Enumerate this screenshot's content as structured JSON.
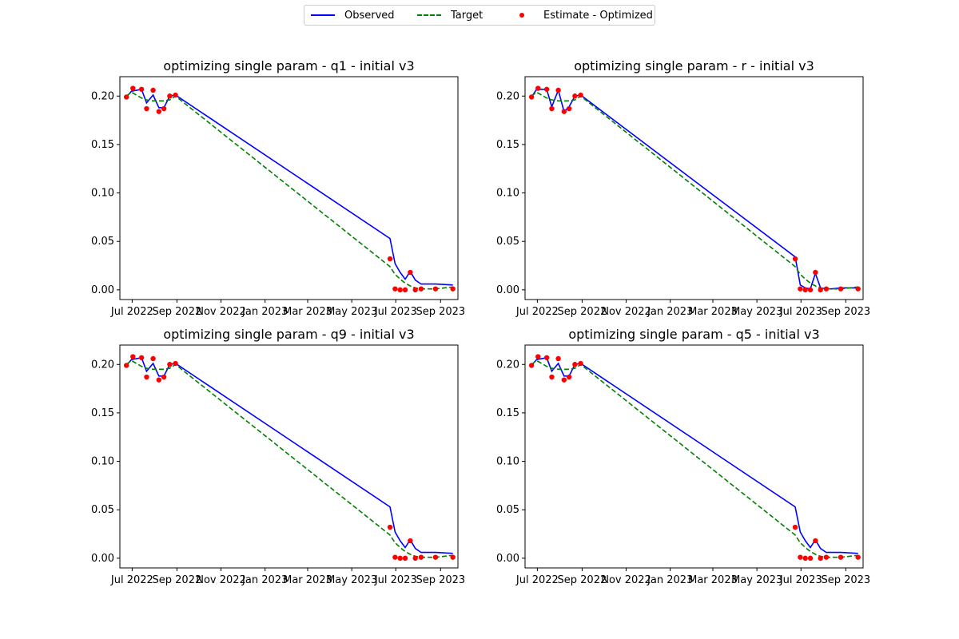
{
  "legend": {
    "entries": [
      {
        "label": "Observed",
        "color": "#0000ff",
        "style": "solid"
      },
      {
        "label": "Target",
        "color": "#008000",
        "style": "dashed"
      },
      {
        "label": "Estimate - Optimized",
        "color": "#ff0000",
        "style": "marker"
      }
    ],
    "placement": "top-center"
  },
  "chart_data": [
    {
      "type": "line",
      "title": "optimizing single param - q1 - initial v3",
      "xlabel": "",
      "ylabel": "",
      "ylim": [
        -0.01,
        0.22
      ],
      "xlim": [
        "2022-06-14",
        "2023-09-25"
      ],
      "y_ticks": [
        0.0,
        0.05,
        0.1,
        0.15,
        0.2
      ],
      "y_tick_labels": [
        "0.00",
        "0.05",
        "0.10",
        "0.15",
        "0.20"
      ],
      "x_ticks": [
        "2022-07-01",
        "2022-09-01",
        "2022-11-01",
        "2023-01-01",
        "2023-03-01",
        "2023-05-01",
        "2023-07-01",
        "2023-09-01"
      ],
      "x_tick_labels": [
        "Jul 2022",
        "Sep 2022",
        "Nov 2022",
        "Jan 2023",
        "Mar 2023",
        "May 2023",
        "Jul 2023",
        "Sep 2023"
      ],
      "grid": false,
      "series": [
        {
          "name": "Observed",
          "kind": "line",
          "color": "#0000ff",
          "x": [
            "2022-06-23",
            "2022-06-30",
            "2022-07-14",
            "2022-07-21",
            "2022-07-30",
            "2022-08-07",
            "2022-08-14",
            "2022-08-22",
            "2022-08-30",
            "2023-06-23",
            "2023-06-30",
            "2023-07-07",
            "2023-07-14",
            "2023-07-21",
            "2023-07-28",
            "2023-08-05",
            "2023-08-12",
            "2023-08-25",
            "2023-09-18"
          ],
          "y": [
            0.199,
            0.205,
            0.207,
            0.193,
            0.201,
            0.188,
            0.188,
            0.2,
            0.201,
            0.053,
            0.027,
            0.018,
            0.011,
            0.019,
            0.01,
            0.006,
            0.006,
            0.006,
            0.005
          ]
        },
        {
          "name": "Target",
          "kind": "dashed",
          "color": "#008000",
          "x": [
            "2022-06-23",
            "2022-06-30",
            "2022-07-14",
            "2022-07-21",
            "2022-07-30",
            "2022-08-07",
            "2022-08-14",
            "2022-08-22",
            "2022-08-30",
            "2023-06-23",
            "2023-06-30",
            "2023-07-07",
            "2023-07-14",
            "2023-07-21",
            "2023-07-28",
            "2023-08-05",
            "2023-08-12",
            "2023-08-25",
            "2023-09-18"
          ],
          "y": [
            0.2,
            0.204,
            0.198,
            0.196,
            0.195,
            0.195,
            0.195,
            0.196,
            0.2,
            0.024,
            0.016,
            0.011,
            0.007,
            0.004,
            0.002,
            0.001,
            0.001,
            0.001,
            0.003
          ]
        },
        {
          "name": "Estimate - Optimized",
          "kind": "scatter",
          "color": "#ff0000",
          "x": [
            "2022-06-23",
            "2022-07-02",
            "2022-07-14",
            "2022-07-21",
            "2022-07-30",
            "2022-08-07",
            "2022-08-14",
            "2022-08-22",
            "2022-08-30",
            "2023-06-23",
            "2023-06-30",
            "2023-07-07",
            "2023-07-14",
            "2023-07-21",
            "2023-07-28",
            "2023-08-05",
            "2023-08-25",
            "2023-09-18"
          ],
          "y": [
            0.199,
            0.208,
            0.207,
            0.187,
            0.206,
            0.184,
            0.187,
            0.2,
            0.201,
            0.032,
            0.001,
            0.0,
            0.0,
            0.018,
            0.0,
            0.001,
            0.001,
            0.001
          ]
        }
      ]
    },
    {
      "type": "line",
      "title": "optimizing single param - r - initial v3",
      "xlabel": "",
      "ylabel": "",
      "ylim": [
        -0.01,
        0.22
      ],
      "xlim": [
        "2022-06-14",
        "2023-09-25"
      ],
      "y_ticks": [
        0.0,
        0.05,
        0.1,
        0.15,
        0.2
      ],
      "y_tick_labels": [
        "0.00",
        "0.05",
        "0.10",
        "0.15",
        "0.20"
      ],
      "x_ticks": [
        "2022-07-01",
        "2022-09-01",
        "2022-11-01",
        "2023-01-01",
        "2023-03-01",
        "2023-05-01",
        "2023-07-01",
        "2023-09-01"
      ],
      "x_tick_labels": [
        "Jul 2022",
        "Sep 2022",
        "Nov 2022",
        "Jan 2023",
        "Mar 2023",
        "May 2023",
        "Jul 2023",
        "Sep 2023"
      ],
      "grid": false,
      "series": [
        {
          "name": "Observed",
          "kind": "line",
          "color": "#0000ff",
          "x": [
            "2022-06-23",
            "2022-06-30",
            "2022-07-14",
            "2022-07-21",
            "2022-07-30",
            "2022-08-07",
            "2022-08-14",
            "2022-08-22",
            "2022-08-30",
            "2023-06-23",
            "2023-06-30",
            "2023-07-07",
            "2023-07-14",
            "2023-07-21",
            "2023-07-28",
            "2023-08-05",
            "2023-08-12",
            "2023-08-25",
            "2023-09-18"
          ],
          "y": [
            0.199,
            0.207,
            0.207,
            0.189,
            0.206,
            0.184,
            0.189,
            0.2,
            0.201,
            0.034,
            0.005,
            0.002,
            0.001,
            0.017,
            0.002,
            0.001,
            0.001,
            0.002,
            0.002
          ]
        },
        {
          "name": "Target",
          "kind": "dashed",
          "color": "#008000",
          "x": [
            "2022-06-23",
            "2022-06-30",
            "2022-07-14",
            "2022-07-21",
            "2022-07-30",
            "2022-08-07",
            "2022-08-14",
            "2022-08-22",
            "2022-08-30",
            "2023-06-23",
            "2023-06-30",
            "2023-07-07",
            "2023-07-14",
            "2023-07-21",
            "2023-07-28",
            "2023-08-05",
            "2023-08-12",
            "2023-08-25",
            "2023-09-18"
          ],
          "y": [
            0.2,
            0.204,
            0.198,
            0.196,
            0.195,
            0.195,
            0.195,
            0.196,
            0.2,
            0.024,
            0.016,
            0.011,
            0.007,
            0.004,
            0.002,
            0.001,
            0.001,
            0.001,
            0.003
          ]
        },
        {
          "name": "Estimate - Optimized",
          "kind": "scatter",
          "color": "#ff0000",
          "x": [
            "2022-06-23",
            "2022-07-02",
            "2022-07-14",
            "2022-07-21",
            "2022-07-30",
            "2022-08-07",
            "2022-08-14",
            "2022-08-22",
            "2022-08-30",
            "2023-06-23",
            "2023-06-30",
            "2023-07-07",
            "2023-07-14",
            "2023-07-21",
            "2023-07-28",
            "2023-08-05",
            "2023-08-25",
            "2023-09-18"
          ],
          "y": [
            0.199,
            0.208,
            0.207,
            0.187,
            0.206,
            0.184,
            0.187,
            0.2,
            0.201,
            0.032,
            0.001,
            0.0,
            0.0,
            0.018,
            0.0,
            0.001,
            0.001,
            0.001
          ]
        }
      ]
    },
    {
      "type": "line",
      "title": "optimizing single param - q9 - initial v3",
      "xlabel": "",
      "ylabel": "",
      "ylim": [
        -0.01,
        0.22
      ],
      "xlim": [
        "2022-06-14",
        "2023-09-25"
      ],
      "y_ticks": [
        0.0,
        0.05,
        0.1,
        0.15,
        0.2
      ],
      "y_tick_labels": [
        "0.00",
        "0.05",
        "0.10",
        "0.15",
        "0.20"
      ],
      "x_ticks": [
        "2022-07-01",
        "2022-09-01",
        "2022-11-01",
        "2023-01-01",
        "2023-03-01",
        "2023-05-01",
        "2023-07-01",
        "2023-09-01"
      ],
      "x_tick_labels": [
        "Jul 2022",
        "Sep 2022",
        "Nov 2022",
        "Jan 2023",
        "Mar 2023",
        "May 2023",
        "Jul 2023",
        "Sep 2023"
      ],
      "grid": false,
      "series": [
        {
          "name": "Observed",
          "kind": "line",
          "color": "#0000ff",
          "x": [
            "2022-06-23",
            "2022-06-30",
            "2022-07-14",
            "2022-07-21",
            "2022-07-30",
            "2022-08-07",
            "2022-08-14",
            "2022-08-22",
            "2022-08-30",
            "2023-06-23",
            "2023-06-30",
            "2023-07-07",
            "2023-07-14",
            "2023-07-21",
            "2023-07-28",
            "2023-08-05",
            "2023-08-12",
            "2023-08-25",
            "2023-09-18"
          ],
          "y": [
            0.199,
            0.205,
            0.207,
            0.193,
            0.201,
            0.188,
            0.188,
            0.2,
            0.201,
            0.053,
            0.027,
            0.018,
            0.011,
            0.019,
            0.01,
            0.006,
            0.006,
            0.006,
            0.005
          ]
        },
        {
          "name": "Target",
          "kind": "dashed",
          "color": "#008000",
          "x": [
            "2022-06-23",
            "2022-06-30",
            "2022-07-14",
            "2022-07-21",
            "2022-07-30",
            "2022-08-07",
            "2022-08-14",
            "2022-08-22",
            "2022-08-30",
            "2023-06-23",
            "2023-06-30",
            "2023-07-07",
            "2023-07-14",
            "2023-07-21",
            "2023-07-28",
            "2023-08-05",
            "2023-08-12",
            "2023-08-25",
            "2023-09-18"
          ],
          "y": [
            0.2,
            0.204,
            0.198,
            0.196,
            0.195,
            0.195,
            0.195,
            0.196,
            0.2,
            0.024,
            0.016,
            0.011,
            0.007,
            0.004,
            0.002,
            0.001,
            0.001,
            0.001,
            0.003
          ]
        },
        {
          "name": "Estimate - Optimized",
          "kind": "scatter",
          "color": "#ff0000",
          "x": [
            "2022-06-23",
            "2022-07-02",
            "2022-07-14",
            "2022-07-21",
            "2022-07-30",
            "2022-08-07",
            "2022-08-14",
            "2022-08-22",
            "2022-08-30",
            "2023-06-23",
            "2023-06-30",
            "2023-07-07",
            "2023-07-14",
            "2023-07-21",
            "2023-07-28",
            "2023-08-05",
            "2023-08-25",
            "2023-09-18"
          ],
          "y": [
            0.199,
            0.208,
            0.207,
            0.187,
            0.206,
            0.184,
            0.187,
            0.2,
            0.201,
            0.032,
            0.001,
            0.0,
            0.0,
            0.018,
            0.0,
            0.001,
            0.001,
            0.001
          ]
        }
      ]
    },
    {
      "type": "line",
      "title": "optimizing single param - q5 - initial v3",
      "xlabel": "",
      "ylabel": "",
      "ylim": [
        -0.01,
        0.22
      ],
      "xlim": [
        "2022-06-14",
        "2023-09-25"
      ],
      "y_ticks": [
        0.0,
        0.05,
        0.1,
        0.15,
        0.2
      ],
      "y_tick_labels": [
        "0.00",
        "0.05",
        "0.10",
        "0.15",
        "0.20"
      ],
      "x_ticks": [
        "2022-07-01",
        "2022-09-01",
        "2022-11-01",
        "2023-01-01",
        "2023-03-01",
        "2023-05-01",
        "2023-07-01",
        "2023-09-01"
      ],
      "x_tick_labels": [
        "Jul 2022",
        "Sep 2022",
        "Nov 2022",
        "Jan 2023",
        "Mar 2023",
        "May 2023",
        "Jul 2023",
        "Sep 2023"
      ],
      "grid": false,
      "series": [
        {
          "name": "Observed",
          "kind": "line",
          "color": "#0000ff",
          "x": [
            "2022-06-23",
            "2022-06-30",
            "2022-07-14",
            "2022-07-21",
            "2022-07-30",
            "2022-08-07",
            "2022-08-14",
            "2022-08-22",
            "2022-08-30",
            "2023-06-23",
            "2023-06-30",
            "2023-07-07",
            "2023-07-14",
            "2023-07-21",
            "2023-07-28",
            "2023-08-05",
            "2023-08-12",
            "2023-08-25",
            "2023-09-18"
          ],
          "y": [
            0.199,
            0.205,
            0.207,
            0.193,
            0.201,
            0.188,
            0.188,
            0.2,
            0.201,
            0.053,
            0.027,
            0.018,
            0.011,
            0.019,
            0.01,
            0.006,
            0.006,
            0.006,
            0.005
          ]
        },
        {
          "name": "Target",
          "kind": "dashed",
          "color": "#008000",
          "x": [
            "2022-06-23",
            "2022-06-30",
            "2022-07-14",
            "2022-07-21",
            "2022-07-30",
            "2022-08-07",
            "2022-08-14",
            "2022-08-22",
            "2022-08-30",
            "2023-06-23",
            "2023-06-30",
            "2023-07-07",
            "2023-07-14",
            "2023-07-21",
            "2023-07-28",
            "2023-08-05",
            "2023-08-12",
            "2023-08-25",
            "2023-09-18"
          ],
          "y": [
            0.2,
            0.204,
            0.198,
            0.196,
            0.195,
            0.195,
            0.195,
            0.196,
            0.2,
            0.024,
            0.016,
            0.011,
            0.007,
            0.004,
            0.002,
            0.001,
            0.001,
            0.001,
            0.003
          ]
        },
        {
          "name": "Estimate - Optimized",
          "kind": "scatter",
          "color": "#ff0000",
          "x": [
            "2022-06-23",
            "2022-07-02",
            "2022-07-14",
            "2022-07-21",
            "2022-07-30",
            "2022-08-07",
            "2022-08-14",
            "2022-08-22",
            "2022-08-30",
            "2023-06-23",
            "2023-06-30",
            "2023-07-07",
            "2023-07-14",
            "2023-07-21",
            "2023-07-28",
            "2023-08-05",
            "2023-08-25",
            "2023-09-18"
          ],
          "y": [
            0.199,
            0.208,
            0.207,
            0.187,
            0.206,
            0.184,
            0.187,
            0.2,
            0.201,
            0.032,
            0.001,
            0.0,
            0.0,
            0.018,
            0.0,
            0.001,
            0.001,
            0.001
          ]
        }
      ]
    }
  ]
}
